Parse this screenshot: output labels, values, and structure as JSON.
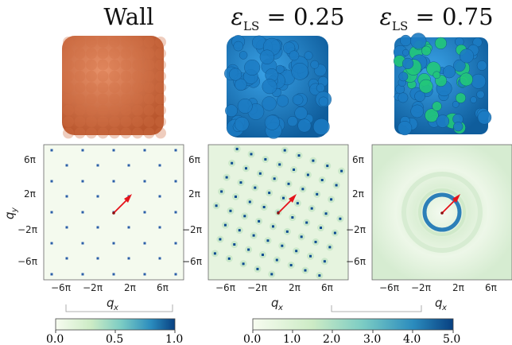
{
  "titles": {
    "wall": "Wall",
    "eps_symbol": "ε",
    "eps_subscript": "LS",
    "eps_a_value": "= 0.25",
    "eps_b_value": "= 0.75"
  },
  "axes": {
    "x_label": "q",
    "x_sub": "x",
    "y_label": "q",
    "y_sub": "y",
    "ticks": [
      "−6π",
      "−2π",
      "2π",
      "6π"
    ],
    "y_ticks_left": [
      "6π",
      "2π",
      "−2π",
      "−6π"
    ],
    "y_ticks_inner": [
      "6π",
      "2π",
      "−2π",
      "−6π"
    ]
  },
  "colorbars": [
    {
      "ticks": [
        "0.0",
        "0.5",
        "1.0"
      ],
      "min": 0.0,
      "max": 1.0
    },
    {
      "ticks": [
        "0.0",
        "1.0",
        "2.0",
        "3.0",
        "4.0",
        "5.0"
      ],
      "min": 0.0,
      "max": 5.0
    }
  ],
  "colors": {
    "wall_particle": "#d8744c",
    "ls_blue": "#1a86d0",
    "ls_green": "#22c77a",
    "map_low": "#f6fbf1",
    "map_peak": "#083f8f",
    "arrow": "#e5131b"
  }
}
